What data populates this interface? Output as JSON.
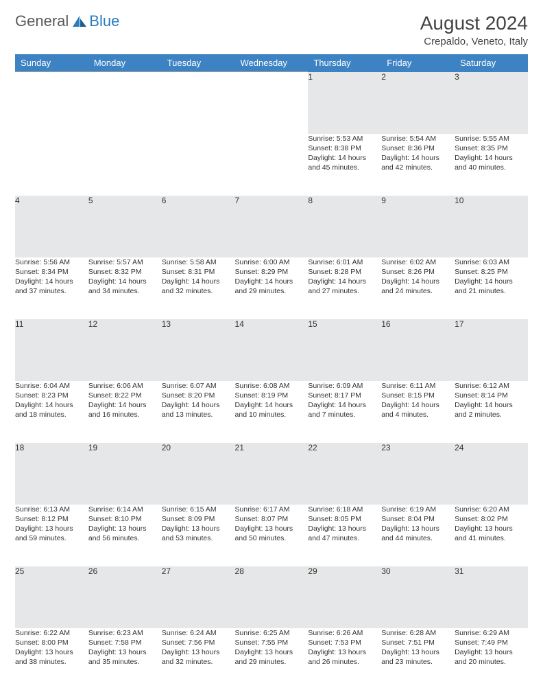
{
  "logo": {
    "gray_text": "General",
    "blue_text": "Blue"
  },
  "title": "August 2024",
  "location": "Crepaldo, Veneto, Italy",
  "columns": [
    "Sunday",
    "Monday",
    "Tuesday",
    "Wednesday",
    "Thursday",
    "Friday",
    "Saturday"
  ],
  "colors": {
    "header_bg": "#3d83c3",
    "header_fg": "#ffffff",
    "daynum_bg": "#e6e7e8",
    "text": "#333333",
    "logo_gray": "#5a5a5a",
    "logo_blue": "#2b7bbf"
  },
  "weeks": [
    [
      null,
      null,
      null,
      null,
      {
        "n": "1",
        "sr": "Sunrise: 5:53 AM",
        "ss": "Sunset: 8:38 PM",
        "d1": "Daylight: 14 hours",
        "d2": "and 45 minutes."
      },
      {
        "n": "2",
        "sr": "Sunrise: 5:54 AM",
        "ss": "Sunset: 8:36 PM",
        "d1": "Daylight: 14 hours",
        "d2": "and 42 minutes."
      },
      {
        "n": "3",
        "sr": "Sunrise: 5:55 AM",
        "ss": "Sunset: 8:35 PM",
        "d1": "Daylight: 14 hours",
        "d2": "and 40 minutes."
      }
    ],
    [
      {
        "n": "4",
        "sr": "Sunrise: 5:56 AM",
        "ss": "Sunset: 8:34 PM",
        "d1": "Daylight: 14 hours",
        "d2": "and 37 minutes."
      },
      {
        "n": "5",
        "sr": "Sunrise: 5:57 AM",
        "ss": "Sunset: 8:32 PM",
        "d1": "Daylight: 14 hours",
        "d2": "and 34 minutes."
      },
      {
        "n": "6",
        "sr": "Sunrise: 5:58 AM",
        "ss": "Sunset: 8:31 PM",
        "d1": "Daylight: 14 hours",
        "d2": "and 32 minutes."
      },
      {
        "n": "7",
        "sr": "Sunrise: 6:00 AM",
        "ss": "Sunset: 8:29 PM",
        "d1": "Daylight: 14 hours",
        "d2": "and 29 minutes."
      },
      {
        "n": "8",
        "sr": "Sunrise: 6:01 AM",
        "ss": "Sunset: 8:28 PM",
        "d1": "Daylight: 14 hours",
        "d2": "and 27 minutes."
      },
      {
        "n": "9",
        "sr": "Sunrise: 6:02 AM",
        "ss": "Sunset: 8:26 PM",
        "d1": "Daylight: 14 hours",
        "d2": "and 24 minutes."
      },
      {
        "n": "10",
        "sr": "Sunrise: 6:03 AM",
        "ss": "Sunset: 8:25 PM",
        "d1": "Daylight: 14 hours",
        "d2": "and 21 minutes."
      }
    ],
    [
      {
        "n": "11",
        "sr": "Sunrise: 6:04 AM",
        "ss": "Sunset: 8:23 PM",
        "d1": "Daylight: 14 hours",
        "d2": "and 18 minutes."
      },
      {
        "n": "12",
        "sr": "Sunrise: 6:06 AM",
        "ss": "Sunset: 8:22 PM",
        "d1": "Daylight: 14 hours",
        "d2": "and 16 minutes."
      },
      {
        "n": "13",
        "sr": "Sunrise: 6:07 AM",
        "ss": "Sunset: 8:20 PM",
        "d1": "Daylight: 14 hours",
        "d2": "and 13 minutes."
      },
      {
        "n": "14",
        "sr": "Sunrise: 6:08 AM",
        "ss": "Sunset: 8:19 PM",
        "d1": "Daylight: 14 hours",
        "d2": "and 10 minutes."
      },
      {
        "n": "15",
        "sr": "Sunrise: 6:09 AM",
        "ss": "Sunset: 8:17 PM",
        "d1": "Daylight: 14 hours",
        "d2": "and 7 minutes."
      },
      {
        "n": "16",
        "sr": "Sunrise: 6:11 AM",
        "ss": "Sunset: 8:15 PM",
        "d1": "Daylight: 14 hours",
        "d2": "and 4 minutes."
      },
      {
        "n": "17",
        "sr": "Sunrise: 6:12 AM",
        "ss": "Sunset: 8:14 PM",
        "d1": "Daylight: 14 hours",
        "d2": "and 2 minutes."
      }
    ],
    [
      {
        "n": "18",
        "sr": "Sunrise: 6:13 AM",
        "ss": "Sunset: 8:12 PM",
        "d1": "Daylight: 13 hours",
        "d2": "and 59 minutes."
      },
      {
        "n": "19",
        "sr": "Sunrise: 6:14 AM",
        "ss": "Sunset: 8:10 PM",
        "d1": "Daylight: 13 hours",
        "d2": "and 56 minutes."
      },
      {
        "n": "20",
        "sr": "Sunrise: 6:15 AM",
        "ss": "Sunset: 8:09 PM",
        "d1": "Daylight: 13 hours",
        "d2": "and 53 minutes."
      },
      {
        "n": "21",
        "sr": "Sunrise: 6:17 AM",
        "ss": "Sunset: 8:07 PM",
        "d1": "Daylight: 13 hours",
        "d2": "and 50 minutes."
      },
      {
        "n": "22",
        "sr": "Sunrise: 6:18 AM",
        "ss": "Sunset: 8:05 PM",
        "d1": "Daylight: 13 hours",
        "d2": "and 47 minutes."
      },
      {
        "n": "23",
        "sr": "Sunrise: 6:19 AM",
        "ss": "Sunset: 8:04 PM",
        "d1": "Daylight: 13 hours",
        "d2": "and 44 minutes."
      },
      {
        "n": "24",
        "sr": "Sunrise: 6:20 AM",
        "ss": "Sunset: 8:02 PM",
        "d1": "Daylight: 13 hours",
        "d2": "and 41 minutes."
      }
    ],
    [
      {
        "n": "25",
        "sr": "Sunrise: 6:22 AM",
        "ss": "Sunset: 8:00 PM",
        "d1": "Daylight: 13 hours",
        "d2": "and 38 minutes."
      },
      {
        "n": "26",
        "sr": "Sunrise: 6:23 AM",
        "ss": "Sunset: 7:58 PM",
        "d1": "Daylight: 13 hours",
        "d2": "and 35 minutes."
      },
      {
        "n": "27",
        "sr": "Sunrise: 6:24 AM",
        "ss": "Sunset: 7:56 PM",
        "d1": "Daylight: 13 hours",
        "d2": "and 32 minutes."
      },
      {
        "n": "28",
        "sr": "Sunrise: 6:25 AM",
        "ss": "Sunset: 7:55 PM",
        "d1": "Daylight: 13 hours",
        "d2": "and 29 minutes."
      },
      {
        "n": "29",
        "sr": "Sunrise: 6:26 AM",
        "ss": "Sunset: 7:53 PM",
        "d1": "Daylight: 13 hours",
        "d2": "and 26 minutes."
      },
      {
        "n": "30",
        "sr": "Sunrise: 6:28 AM",
        "ss": "Sunset: 7:51 PM",
        "d1": "Daylight: 13 hours",
        "d2": "and 23 minutes."
      },
      {
        "n": "31",
        "sr": "Sunrise: 6:29 AM",
        "ss": "Sunset: 7:49 PM",
        "d1": "Daylight: 13 hours",
        "d2": "and 20 minutes."
      }
    ]
  ]
}
